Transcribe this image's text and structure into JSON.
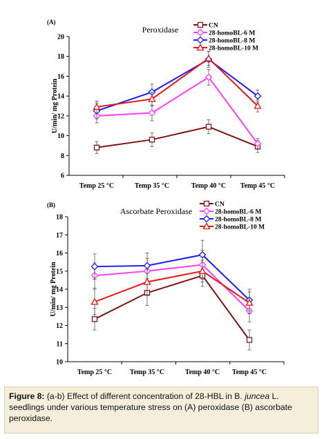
{
  "caption": {
    "label": "Figure 8:",
    "part1": " (a-b) Effect of different concentration of 28-HBL in B. ",
    "italic": "juncea",
    "part2": " L. seedlings under various temperature stress on (A) peroxidase (B) ascorbate peroxidase."
  },
  "colors": {
    "CN": "#7b1515",
    "homoBL6": "#ff3cff",
    "homoBL8": "#1a1aff",
    "homoBL10": "#ee1111"
  },
  "chart_data": [
    {
      "type": "line",
      "panel": "(A)",
      "title": "Peroxidase",
      "ylabel": "U/min/ mg Protein",
      "xlabel": "",
      "categories": [
        "Temp 25 °C",
        "Temp 35 °C",
        "Temp 40 °C",
        "Temp 45 °C"
      ],
      "ylim": [
        6,
        20
      ],
      "yticks": [
        6,
        8,
        10,
        12,
        14,
        16,
        18,
        20
      ],
      "grid": false,
      "legend": "top-right",
      "series": [
        {
          "name": "CN",
          "color": "#7b1515",
          "marker": "square",
          "values": [
            8.8,
            9.6,
            10.9,
            8.9
          ],
          "errors": [
            0.6,
            0.7,
            0.7,
            0.6
          ]
        },
        {
          "name": "28-homoBL-6 M",
          "color": "#ff3cff",
          "marker": "diamond",
          "values": [
            12.0,
            12.3,
            15.9,
            9.2
          ],
          "errors": [
            0.7,
            0.8,
            0.8,
            0.5
          ]
        },
        {
          "name": "28-homoBL-8 M",
          "color": "#1a1aff",
          "marker": "diamond",
          "values": [
            12.5,
            14.4,
            17.7,
            14.0
          ],
          "errors": [
            0.8,
            0.8,
            0.8,
            0.6
          ]
        },
        {
          "name": "28-homoBL-10 M",
          "color": "#ee1111",
          "marker": "triangle",
          "values": [
            12.9,
            13.7,
            17.8,
            13.0
          ],
          "errors": [
            0.6,
            0.7,
            0.7,
            0.6
          ]
        }
      ]
    },
    {
      "type": "line",
      "panel": "(B)",
      "title": "Ascorbate Peroxidase",
      "ylabel": "U/min/ mg Protein",
      "xlabel": "",
      "categories": [
        "Temp 25 °C",
        "Temp 35 °C",
        "Temp 40 °C",
        "Temp 45 °C"
      ],
      "ylim": [
        10,
        18
      ],
      "yticks": [
        10,
        11,
        12,
        13,
        14,
        15,
        16,
        17,
        18
      ],
      "grid": false,
      "legend": "top-right",
      "series": [
        {
          "name": "CN",
          "color": "#7b1515",
          "marker": "square",
          "values": [
            12.35,
            13.8,
            14.75,
            11.2
          ],
          "errors": [
            0.6,
            0.7,
            0.6,
            0.55
          ]
        },
        {
          "name": "28-homoBL-6 M",
          "color": "#ff3cff",
          "marker": "diamond",
          "values": [
            14.75,
            15.0,
            15.35,
            12.8
          ],
          "errors": [
            0.7,
            0.7,
            0.8,
            0.6
          ]
        },
        {
          "name": "28-homoBL-8 M",
          "color": "#1a1aff",
          "marker": "diamond",
          "values": [
            15.25,
            15.3,
            15.9,
            13.4
          ],
          "errors": [
            0.7,
            0.7,
            0.8,
            0.6
          ]
        },
        {
          "name": "28-homoBL-10 M",
          "color": "#ee1111",
          "marker": "triangle",
          "values": [
            13.3,
            14.4,
            15.0,
            13.25
          ],
          "errors": [
            0.7,
            0.7,
            0.6,
            0.6
          ]
        }
      ]
    }
  ]
}
